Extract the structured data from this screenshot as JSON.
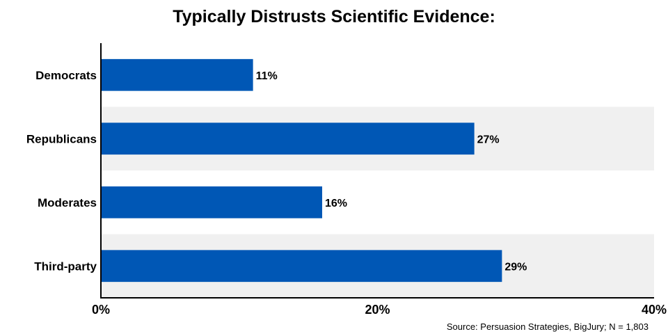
{
  "chart_data": {
    "type": "bar",
    "orientation": "horizontal",
    "title": "Typically Distrusts Scientific Evidence:",
    "categories": [
      "Democrats",
      "Republicans",
      "Moderates",
      "Third-party"
    ],
    "values": [
      11,
      27,
      16,
      29
    ],
    "value_labels": [
      "11%",
      "27%",
      "16%",
      "29%"
    ],
    "xlim": [
      0,
      40
    ],
    "x_ticks": [
      0,
      20,
      40
    ],
    "x_tick_labels": [
      "0%",
      "20%",
      "40%"
    ],
    "xlabel": "",
    "ylabel": "",
    "bar_color": "#0057b5",
    "band_color": "#f0f0f0",
    "grid": false,
    "legend": "none"
  },
  "source": "Source: Persuasion Strategies, BigJury; N = 1,803"
}
